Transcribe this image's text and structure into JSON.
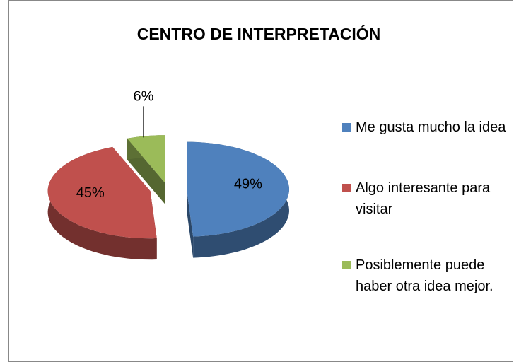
{
  "chart_data": {
    "type": "pie",
    "title": "CENTRO DE INTERPRETACIÓN",
    "categories": [
      "Me gusta mucho la idea",
      "Algo interesante para visitar",
      "Posiblemente puede haber otra idea mejor."
    ],
    "values": [
      49,
      45,
      6
    ],
    "value_labels": [
      "49%",
      "45%",
      "6%"
    ],
    "colors": [
      "#4f81bd",
      "#c0504d",
      "#9bbb59"
    ],
    "legend": "right"
  }
}
